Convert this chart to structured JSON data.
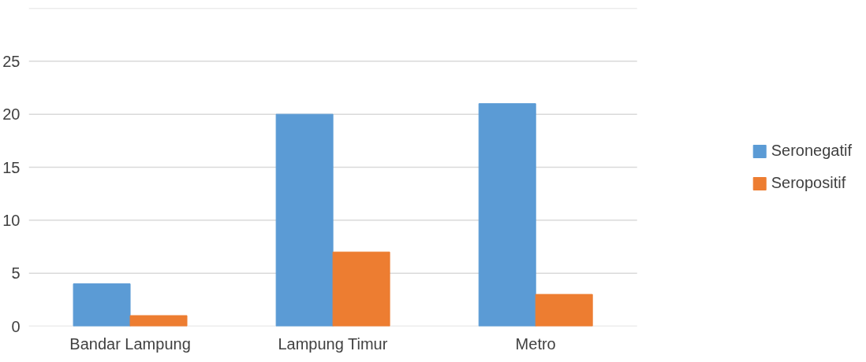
{
  "chart_data": {
    "type": "bar",
    "categories": [
      "Bandar Lampung",
      "Lampung Timur",
      "Metro"
    ],
    "series": [
      {
        "name": "Seronegatif",
        "color": "#5b9bd5",
        "values": [
          4,
          20,
          21
        ]
      },
      {
        "name": "Seropositif",
        "color": "#ed7d31",
        "values": [
          1,
          7,
          3
        ]
      }
    ],
    "ylim": [
      0,
      30
    ],
    "yticks": [
      0,
      5,
      10,
      15,
      20,
      25,
      {
        "value": 30,
        "label": null
      }
    ],
    "grid": "y",
    "legend": "right"
  }
}
